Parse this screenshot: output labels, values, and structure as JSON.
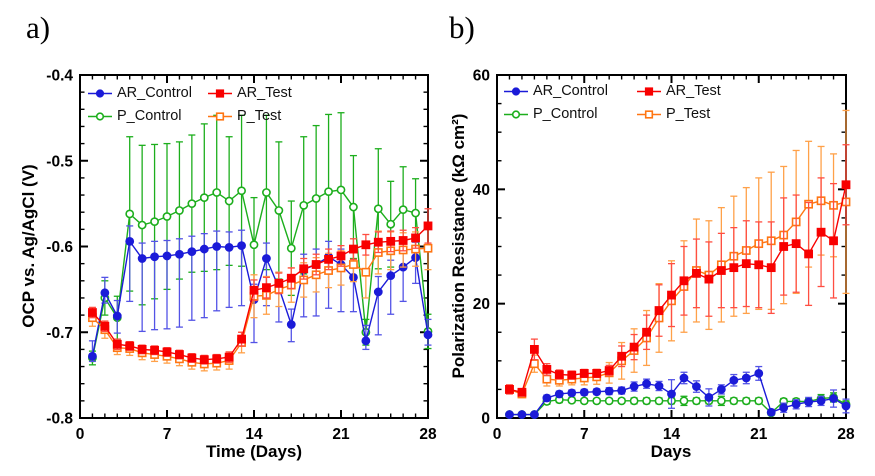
{
  "figure": {
    "background": "#ffffff",
    "panels": [
      {
        "tag": "a)"
      },
      {
        "tag": "b)"
      }
    ]
  },
  "chart_data": [
    {
      "type": "line",
      "panel": "a",
      "xlabel": "Time (Days)",
      "ylabel": "OCP vs. Ag/AgCl (V)",
      "xlim": [
        0,
        28
      ],
      "ylim": [
        -0.8,
        -0.4
      ],
      "xticks": [
        0,
        7,
        14,
        21,
        28
      ],
      "xtick_labels": [
        "0",
        "7",
        "14",
        "21",
        "28"
      ],
      "yticks": [
        -0.8,
        -0.7,
        -0.6,
        -0.5,
        -0.4
      ],
      "ytick_labels": [
        "-0.8",
        "-0.7",
        "-0.6",
        "-0.5",
        "-0.4"
      ],
      "x_minor_step": 1,
      "y_minor_step": 0.02,
      "grid": false,
      "legend_position": "top-left",
      "x": [
        1,
        2,
        3,
        4,
        5,
        6,
        7,
        8,
        9,
        10,
        11,
        12,
        13,
        14,
        15,
        16,
        17,
        18,
        19,
        20,
        21,
        22,
        23,
        24,
        25,
        26,
        27,
        28
      ],
      "series": [
        {
          "name": "P_Control",
          "color": "#1CAE1C",
          "err_color": "#1CAE1C",
          "marker": "circle",
          "open": true,
          "values": [
            -0.73,
            -0.66,
            -0.683,
            -0.562,
            -0.575,
            -0.571,
            -0.565,
            -0.558,
            -0.55,
            -0.543,
            -0.537,
            -0.547,
            -0.535,
            -0.598,
            -0.537,
            -0.558,
            -0.602,
            -0.552,
            -0.544,
            -0.536,
            -0.534,
            -0.554,
            -0.7,
            -0.556,
            -0.574,
            -0.557,
            -0.561,
            -0.699
          ],
          "err": [
            0.008,
            0.02,
            0.025,
            0.09,
            0.093,
            0.09,
            0.085,
            0.08,
            0.08,
            0.086,
            0.09,
            0.075,
            0.088,
            0.055,
            0.09,
            0.08,
            0.055,
            0.08,
            0.085,
            0.09,
            0.09,
            0.06,
            0.015,
            0.07,
            0.05,
            0.05,
            0.04,
            0.02
          ]
        },
        {
          "name": "AR_Control",
          "color": "#1B1BD8",
          "err_color": "#5353E6",
          "marker": "circle",
          "open": false,
          "values": [
            -0.728,
            -0.654,
            -0.681,
            -0.594,
            -0.614,
            -0.612,
            -0.611,
            -0.609,
            -0.606,
            -0.603,
            -0.6,
            -0.601,
            -0.599,
            -0.662,
            -0.614,
            -0.648,
            -0.691,
            -0.627,
            -0.621,
            -0.612,
            -0.621,
            -0.636,
            -0.71,
            -0.653,
            -0.634,
            -0.624,
            -0.613,
            -0.703
          ],
          "err_up": 0.018,
          "err_down": [
            0.006,
            0.012,
            0.02,
            0.07,
            0.085,
            0.085,
            0.085,
            0.085,
            0.08,
            0.08,
            0.075,
            0.07,
            0.07,
            0.05,
            0.055,
            0.04,
            0.02,
            0.055,
            0.06,
            0.06,
            0.055,
            0.04,
            0.01,
            0.05,
            0.045,
            0.04,
            0.03,
            0.012
          ]
        },
        {
          "name": "P_Test",
          "color": "#FF7512",
          "err_color": "#FFA149",
          "marker": "square",
          "open": true,
          "values": [
            -0.683,
            -0.697,
            -0.718,
            -0.719,
            -0.724,
            -0.726,
            -0.728,
            -0.731,
            -0.735,
            -0.737,
            -0.736,
            -0.733,
            -0.712,
            -0.658,
            -0.657,
            -0.65,
            -0.645,
            -0.639,
            -0.633,
            -0.628,
            -0.625,
            -0.621,
            -0.63,
            -0.607,
            -0.605,
            -0.604,
            -0.603,
            -0.602
          ],
          "err": [
            0.01,
            0.01,
            0.008,
            0.008,
            0.008,
            0.008,
            0.008,
            0.008,
            0.008,
            0.008,
            0.008,
            0.01,
            0.012,
            0.025,
            0.022,
            0.02,
            0.02,
            0.02,
            0.02,
            0.02,
            0.02,
            0.02,
            0.03,
            0.025,
            0.022,
            0.02,
            0.02,
            0.025
          ]
        },
        {
          "name": "AR_Test",
          "color": "#F80000",
          "err_color": "#FF4E42",
          "marker": "square",
          "open": false,
          "values": [
            -0.677,
            -0.693,
            -0.714,
            -0.716,
            -0.72,
            -0.721,
            -0.723,
            -0.726,
            -0.73,
            -0.732,
            -0.731,
            -0.729,
            -0.708,
            -0.651,
            -0.648,
            -0.643,
            -0.637,
            -0.626,
            -0.621,
            -0.615,
            -0.611,
            -0.603,
            -0.598,
            -0.595,
            -0.594,
            -0.593,
            -0.59,
            -0.576
          ],
          "err": [
            0.006,
            0.006,
            0.006,
            0.005,
            0.005,
            0.005,
            0.005,
            0.005,
            0.005,
            0.005,
            0.005,
            0.006,
            0.008,
            0.012,
            0.012,
            0.012,
            0.012,
            0.012,
            0.012,
            0.012,
            0.012,
            0.012,
            0.012,
            0.012,
            0.012,
            0.012,
            0.012,
            0.02
          ]
        }
      ]
    },
    {
      "type": "line",
      "panel": "b",
      "xlabel": "Days",
      "ylabel": "Polarization Resistance (kΩ cm²)",
      "xlim": [
        0,
        28
      ],
      "ylim": [
        0,
        60
      ],
      "xticks": [
        0,
        7,
        14,
        21,
        28
      ],
      "xtick_labels": [
        "0",
        "7",
        "14",
        "21",
        "28"
      ],
      "yticks": [
        0,
        20,
        40,
        60
      ],
      "ytick_labels": [
        "0",
        "20",
        "40",
        "60"
      ],
      "x_minor_step": 1,
      "y_minor_step": 5,
      "grid": false,
      "legend_position": "top-left",
      "x": [
        1,
        2,
        3,
        4,
        5,
        6,
        7,
        8,
        9,
        10,
        11,
        12,
        13,
        14,
        15,
        16,
        17,
        18,
        19,
        20,
        21,
        22,
        23,
        24,
        25,
        26,
        27,
        28
      ],
      "series": [
        {
          "name": "P_Control",
          "color": "#1CAE1C",
          "err_color": "#1CAE1C",
          "marker": "circle",
          "open": true,
          "values": [
            0.6,
            0.6,
            0.6,
            2.9,
            3.2,
            3.1,
            3.0,
            3.0,
            3.0,
            3.0,
            3.0,
            3.0,
            3.0,
            3.0,
            3.0,
            3.0,
            3.0,
            3.0,
            3.0,
            3.0,
            3.0,
            0.9,
            2.9,
            2.9,
            2.9,
            3.4,
            3.6,
            2.4
          ],
          "err": [
            0.2,
            0.2,
            0.2,
            0.5,
            0.5,
            0.4,
            0.4,
            0.4,
            0.4,
            0.4,
            0.5,
            0.5,
            0.5,
            0.5,
            0.8,
            0.5,
            0.5,
            0.8,
            0.5,
            0.5,
            0.5,
            0.3,
            0.5,
            0.5,
            0.5,
            0.7,
            0.8,
            0.6
          ]
        },
        {
          "name": "AR_Control",
          "color": "#1B1BD8",
          "err_color": "#5353E6",
          "marker": "circle",
          "open": false,
          "values": [
            0.6,
            0.6,
            0.6,
            3.5,
            4.2,
            4.4,
            4.5,
            4.6,
            4.7,
            4.8,
            5.5,
            6.0,
            5.6,
            4.2,
            7.0,
            5.5,
            3.6,
            5.0,
            6.6,
            7.0,
            7.8,
            1.0,
            1.8,
            2.4,
            2.8,
            3.0,
            3.4,
            2.1
          ],
          "err": [
            0.3,
            0.2,
            0.2,
            0.5,
            0.5,
            0.5,
            0.5,
            0.5,
            0.6,
            0.6,
            0.8,
            0.8,
            0.8,
            2.5,
            1.0,
            1.0,
            1.5,
            0.8,
            1.0,
            1.0,
            1.2,
            0.5,
            0.8,
            0.8,
            0.8,
            0.8,
            1.5,
            1.2
          ]
        },
        {
          "name": "P_Test",
          "color": "#FF7512",
          "err_color": "#FFA149",
          "marker": "square",
          "open": true,
          "values": [
            5.0,
            4.2,
            9.5,
            6.8,
            6.6,
            6.8,
            7.0,
            7.2,
            7.9,
            10.0,
            11.8,
            14.0,
            17.5,
            20.5,
            23.0,
            25.8,
            25.0,
            26.8,
            28.3,
            29.3,
            30.5,
            31.0,
            32.0,
            34.3,
            37.4,
            38.0,
            37.2,
            37.8
          ],
          "err": [
            0.7,
            0.6,
            1.5,
            1.2,
            1.0,
            1.0,
            1.2,
            1.3,
            1.8,
            3.2,
            3.8,
            4.8,
            6.0,
            7.0,
            8.0,
            9.0,
            9.5,
            10.0,
            10.5,
            11.0,
            11.5,
            12.0,
            12.0,
            12.5,
            11.0,
            9.5,
            9.0,
            16.0
          ]
        },
        {
          "name": "AR_Test",
          "color": "#F80000",
          "err_color": "#FF4E42",
          "marker": "square",
          "open": false,
          "values": [
            5.0,
            4.5,
            12.0,
            8.5,
            7.6,
            7.5,
            7.8,
            7.8,
            8.3,
            10.8,
            12.4,
            15.0,
            18.8,
            21.5,
            24.0,
            25.3,
            24.3,
            25.8,
            26.3,
            27.0,
            26.8,
            26.3,
            30.0,
            30.5,
            28.7,
            32.5,
            31.0,
            40.8
          ],
          "err": [
            0.8,
            0.6,
            1.8,
            1.0,
            0.8,
            0.7,
            0.7,
            0.7,
            0.9,
            1.8,
            2.2,
            3.0,
            4.5,
            5.5,
            6.0,
            6.0,
            6.5,
            6.5,
            7.0,
            7.5,
            7.5,
            8.0,
            8.5,
            8.5,
            9.0,
            9.5,
            10.0,
            7.0
          ]
        }
      ]
    }
  ]
}
